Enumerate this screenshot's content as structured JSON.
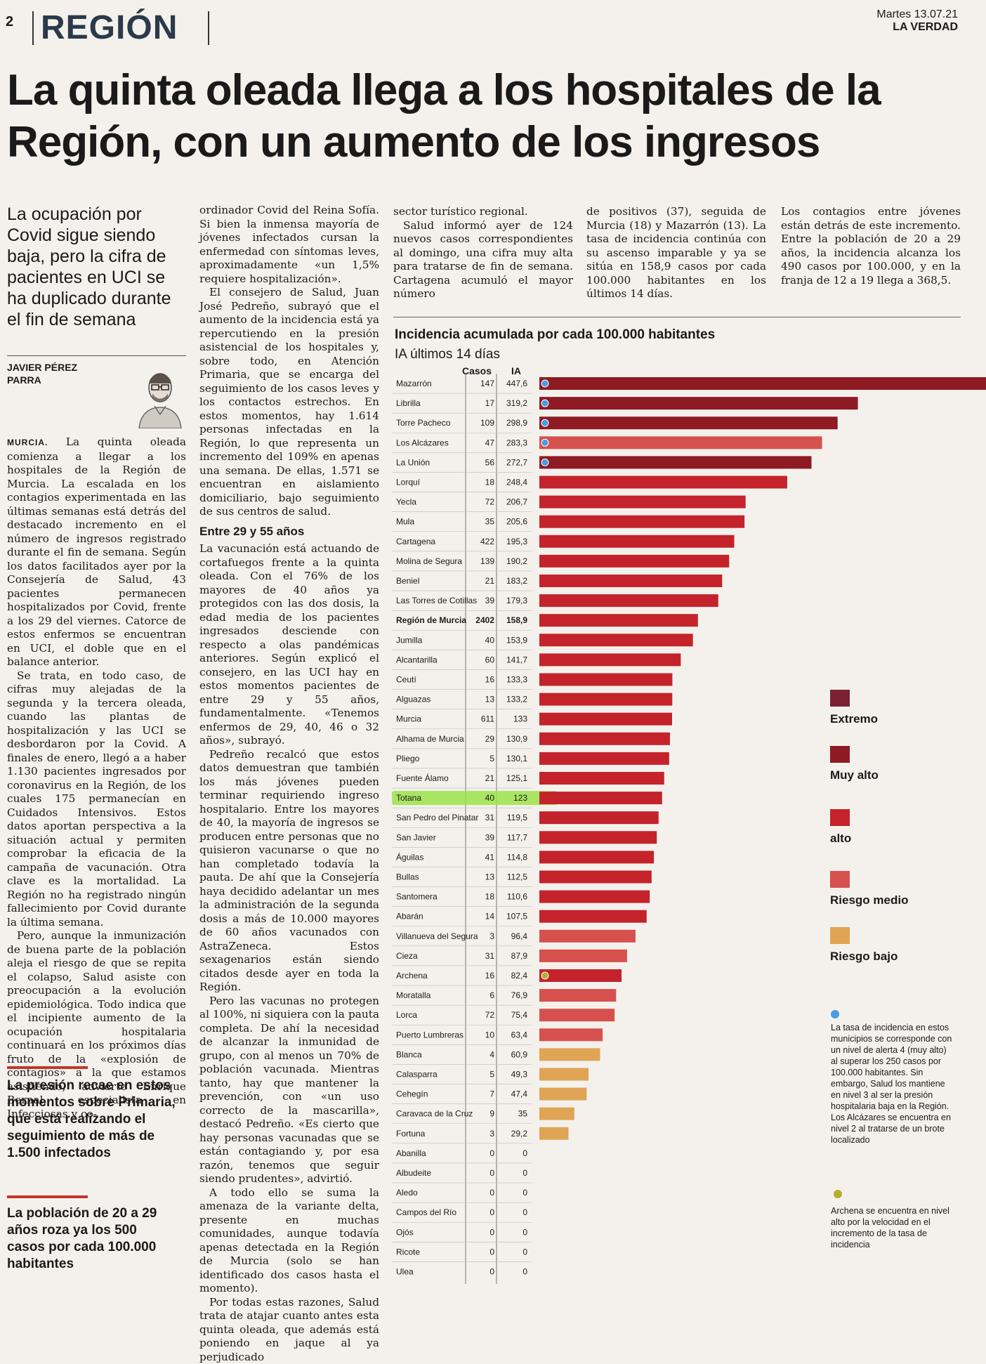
{
  "header": {
    "page_number": "2",
    "section": "REGIÓN",
    "date": "Martes 13.07.21",
    "newspaper": "LA VERDAD"
  },
  "headline": "La quinta oleada llega a los hospitales de la Región, con un aumento de los ingresos",
  "subhead": "La ocupación por Covid sigue siendo baja, pero la cifra de pacientes en UCI se ha duplicado durante el fin de semana",
  "author": [
    "JAVIER PÉREZ",
    "PARRA"
  ],
  "article": {
    "city": "MURCIA.",
    "col1": [
      "La quinta oleada comienza a llegar a los hospitales de la Región de Murcia. La escalada en los contagios experimentada en las últimas semanas está detrás del destacado incremento en el número de ingresos registrado durante el fin de semana. Según los datos facilitados ayer por la Consejería de Salud, 43 pacientes permanecen hospitalizados por Covid, frente a los 29 del viernes. Catorce de estos enfermos se encuentran en UCI, el doble que en el balance anterior.",
      "Se trata, en todo caso, de cifras muy alejadas de la segunda y la tercera oleada, cuando las plantas de hospitalización y las UCI se desbordaron por la Covid. A finales de enero, llegó a a haber 1.130 pacientes ingresados por coronavirus en la Región, de los cuales 175 permanecían en Cuidados Intensivos. Estos datos aportan perspectiva a la situación actual y permiten comprobar la eficacia de la campaña de vacunación. Otra clave es la mortalidad. La Región no ha registrado ningún fallecimiento por Covid durante la última semana.",
      "Pero, aunque la inmunización de buena parte de la población aleja el riesgo de que se repita el colapso, Salud asiste con preocupación a la evolución epidemiológica. Todo indica que el incipiente aumento de la ocupación hospitalaria continuará en los próximos días fruto de la «explosión de contagios» a la que estamos asistiendo, advierte Enrique Bernal, especialista en Infecciosas y co-"
    ],
    "col2a": [
      "ordinador Covid del Reina Sofía. Si bien la inmensa mayoría de jóvenes infectados cursan la enfermedad con síntomas leves, aproximadamente «un 1,5% requiere hospitalización».",
      "El consejero de Salud, Juan José Pedreño, subrayó que el aumento de la incidencia está ya repercutiendo en la presión asistencial de los hospitales y, sobre todo, en Atención Primaria, que se encarga del seguimiento de los casos leves y los contactos estrechos. En estos momentos, hay 1.614 personas infectadas en la Región, lo que representa un incremento del 109% en apenas una semana. De ellas, 1.571 se encuentran en aislamiento domiciliario, bajo seguimiento de sus centros de salud."
    ],
    "subtitle": "Entre 29 y 55 años",
    "col2b": [
      "La vacunación está actuando de cortafuegos frente a la quinta oleada. Con el 76% de los mayores de 40 años ya protegidos con las dos dosis, la edad media de los pacientes ingresados desciende con respecto a olas pandémicas anteriores. Según explicó el consejero, en las UCI hay en estos momentos pacientes de entre 29 y 55 años, fundamentalmente. «Tenemos enfermos de 29, 40, 46 o 32 años», subrayó.",
      "Pedreño recalcó que estos datos demuestran que también los más jóvenes pueden terminar requiriendo ingreso hospitalario. Entre los mayores de 40, la mayoría de ingresos se producen entre personas que no quisieron vacunarse o que no han completado todavía la pauta. De ahí que la Consejería haya decidido adelantar un mes la administración de la segunda dosis a más de 10.000 mayores de 60 años vacunados con AstraZeneca. Estos sexagenarios están siendo citados desde ayer en toda la Región.",
      "Pero las vacunas no protegen al 100%, ni siquiera con la pauta completa. De ahí la necesidad de alcanzar la inmunidad de grupo, con al menos un 70% de población vacunada. Mientras tanto, hay que mantener la prevención, con «un uso correcto de la mascarilla», destacó Pedreño. «Es cierto que hay personas vacunadas que se están contagiando y, por esa razón, tenemos que seguir siendo prudentes», advirtió.",
      "A todo ello se suma la amenaza de la variante delta, presente en muchas comunidades, aunque todavía apenas detectada en la Región de Murcia (solo se han identificado dos casos hasta el momento).",
      "Por todas estas razones, Salud trata de atajar cuanto antes esta quinta oleada, que además está poniendo en jaque al ya perjudicado"
    ],
    "col3": [
      "sector turístico regional.",
      "Salud informó ayer de 124 nuevos casos correspondientes al domingo, una cifra muy alta para tratarse de fin de semana. Cartagena acumuló el mayor número"
    ],
    "col4": [
      "de positivos (37), seguida de Murcia (18) y Mazarrón (13). La tasa de incidencia continúa con su ascenso imparable y ya se sitúa en 158,9 casos por cada 100.000 habitantes en los últimos 14 días."
    ],
    "col5": [
      "Los contagios entre jóvenes están detrás de este incremento. Entre la población de 20 a 29 años, la incidencia alcanza los 490 casos por 100.000, y en la franja de 12 a 19 llega a 368,5."
    ]
  },
  "pullquotes": [
    "La presión recae en estos momentos sobre Primaria, que está realizando el seguimiento de más de 1.500 infectados",
    "La población de 20 a 29 años roza ya los 500 casos por cada 100.000 habitantes"
  ],
  "chart_data": {
    "type": "bar",
    "orientation": "horizontal",
    "title": "Incidencia acumulada por cada 100.000 habitantes",
    "subtitle": "IA últimos 14 días",
    "columns": [
      "Casos",
      "IA"
    ],
    "rows": [
      {
        "name": "Mazarrón",
        "casos": "147",
        "ia": "447,6",
        "value": 447.6,
        "level": "muy_alto",
        "marker": "blue"
      },
      {
        "name": "Librilla",
        "casos": "17",
        "ia": "319,2",
        "value": 319.2,
        "level": "muy_alto",
        "marker": "blue"
      },
      {
        "name": "Torre Pacheco",
        "casos": "109",
        "ia": "298,9",
        "value": 298.9,
        "level": "muy_alto",
        "marker": "blue"
      },
      {
        "name": "Los Alcázares",
        "casos": "47",
        "ia": "283,3",
        "value": 283.3,
        "level": "riesgo_medio",
        "marker": "blue"
      },
      {
        "name": "La Unión",
        "casos": "56",
        "ia": "272,7",
        "value": 272.7,
        "level": "muy_alto",
        "marker": "blue"
      },
      {
        "name": "Lorquí",
        "casos": "18",
        "ia": "248,4",
        "value": 248.4,
        "level": "alto",
        "marker": ""
      },
      {
        "name": "Yecla",
        "casos": "72",
        "ia": "206,7",
        "value": 206.7,
        "level": "alto",
        "marker": ""
      },
      {
        "name": "Mula",
        "casos": "35",
        "ia": "205,6",
        "value": 205.6,
        "level": "alto",
        "marker": ""
      },
      {
        "name": "Cartagena",
        "casos": "422",
        "ia": "195,3",
        "value": 195.3,
        "level": "alto",
        "marker": ""
      },
      {
        "name": "Molina de Segura",
        "casos": "139",
        "ia": "190,2",
        "value": 190.2,
        "level": "alto",
        "marker": ""
      },
      {
        "name": "Beniel",
        "casos": "21",
        "ia": "183,2",
        "value": 183.2,
        "level": "alto",
        "marker": ""
      },
      {
        "name": "Las Torres de Cotillas",
        "casos": "39",
        "ia": "179,3",
        "value": 179.3,
        "level": "alto",
        "marker": ""
      },
      {
        "name": "Región de Murcia",
        "casos": "2402",
        "ia": "158,9",
        "value": 158.9,
        "level": "alto",
        "marker": "",
        "bold": true
      },
      {
        "name": "Jumilla",
        "casos": "40",
        "ia": "153,9",
        "value": 153.9,
        "level": "alto",
        "marker": ""
      },
      {
        "name": "Alcantarilla",
        "casos": "60",
        "ia": "141,7",
        "value": 141.7,
        "level": "alto",
        "marker": ""
      },
      {
        "name": "Ceutí",
        "casos": "16",
        "ia": "133,3",
        "value": 133.3,
        "level": "alto",
        "marker": ""
      },
      {
        "name": "Alguazas",
        "casos": "13",
        "ia": "133,2",
        "value": 133.2,
        "level": "alto",
        "marker": ""
      },
      {
        "name": "Murcia",
        "casos": "611",
        "ia": "133",
        "value": 133,
        "level": "alto",
        "marker": ""
      },
      {
        "name": "Alhama de Murcia",
        "casos": "29",
        "ia": "130,9",
        "value": 130.9,
        "level": "alto",
        "marker": ""
      },
      {
        "name": "Pliego",
        "casos": "5",
        "ia": "130,1",
        "value": 130.1,
        "level": "alto",
        "marker": ""
      },
      {
        "name": "Fuente Álamo",
        "casos": "21",
        "ia": "125,1",
        "value": 125.1,
        "level": "alto",
        "marker": ""
      },
      {
        "name": "Totana",
        "casos": "40",
        "ia": "123",
        "value": 123,
        "level": "alto",
        "marker": "",
        "highlight": true
      },
      {
        "name": "San Pedro del Pinatar",
        "casos": "31",
        "ia": "119,5",
        "value": 119.5,
        "level": "alto",
        "marker": ""
      },
      {
        "name": "San Javier",
        "casos": "39",
        "ia": "117,7",
        "value": 117.7,
        "level": "alto",
        "marker": ""
      },
      {
        "name": "Águilas",
        "casos": "41",
        "ia": "114,8",
        "value": 114.8,
        "level": "alto",
        "marker": ""
      },
      {
        "name": "Bullas",
        "casos": "13",
        "ia": "112,5",
        "value": 112.5,
        "level": "alto",
        "marker": ""
      },
      {
        "name": "Santomera",
        "casos": "18",
        "ia": "110,6",
        "value": 110.6,
        "level": "alto",
        "marker": ""
      },
      {
        "name": "Abarán",
        "casos": "14",
        "ia": "107,5",
        "value": 107.5,
        "level": "alto",
        "marker": ""
      },
      {
        "name": "Villanueva del Segura",
        "casos": "3",
        "ia": "96,4",
        "value": 96.4,
        "level": "riesgo_medio",
        "marker": ""
      },
      {
        "name": "Cieza",
        "casos": "31",
        "ia": "87,9",
        "value": 87.9,
        "level": "riesgo_medio",
        "marker": ""
      },
      {
        "name": "Archena",
        "casos": "16",
        "ia": "82,4",
        "value": 82.4,
        "level": "alto",
        "marker": "yellow"
      },
      {
        "name": "Moratalla",
        "casos": "6",
        "ia": "76,9",
        "value": 76.9,
        "level": "riesgo_medio",
        "marker": ""
      },
      {
        "name": "Lorca",
        "casos": "72",
        "ia": "75,4",
        "value": 75.4,
        "level": "riesgo_medio",
        "marker": ""
      },
      {
        "name": "Puerto Lumbreras",
        "casos": "10",
        "ia": "63,4",
        "value": 63.4,
        "level": "riesgo_medio",
        "marker": ""
      },
      {
        "name": "Blanca",
        "casos": "4",
        "ia": "60,9",
        "value": 60.9,
        "level": "riesgo_bajo",
        "marker": ""
      },
      {
        "name": "Calasparra",
        "casos": "5",
        "ia": "49,3",
        "value": 49.3,
        "level": "riesgo_bajo",
        "marker": ""
      },
      {
        "name": "Cehegín",
        "casos": "7",
        "ia": "47,4",
        "value": 47.4,
        "level": "riesgo_bajo",
        "marker": ""
      },
      {
        "name": "Caravaca de la Cruz",
        "casos": "9",
        "ia": "35",
        "value": 35,
        "level": "riesgo_bajo",
        "marker": ""
      },
      {
        "name": "Fortuna",
        "casos": "3",
        "ia": "29,2",
        "value": 29.2,
        "level": "riesgo_bajo",
        "marker": ""
      },
      {
        "name": "Abanilla",
        "casos": "0",
        "ia": "0",
        "value": 0,
        "level": "riesgo_bajo",
        "marker": ""
      },
      {
        "name": "Albudeite",
        "casos": "0",
        "ia": "0",
        "value": 0,
        "level": "riesgo_bajo",
        "marker": ""
      },
      {
        "name": "Aledo",
        "casos": "0",
        "ia": "0",
        "value": 0,
        "level": "riesgo_bajo",
        "marker": ""
      },
      {
        "name": "Campos del Río",
        "casos": "0",
        "ia": "0",
        "value": 0,
        "level": "riesgo_bajo",
        "marker": ""
      },
      {
        "name": "Ojós",
        "casos": "0",
        "ia": "0",
        "value": 0,
        "level": "riesgo_bajo",
        "marker": ""
      },
      {
        "name": "Ricote",
        "casos": "0",
        "ia": "0",
        "value": 0,
        "level": "riesgo_bajo",
        "marker": ""
      },
      {
        "name": "Ulea",
        "casos": "0",
        "ia": "0",
        "value": 0,
        "level": "riesgo_bajo",
        "marker": ""
      }
    ],
    "legend": [
      {
        "key": "extremo",
        "label": "Extremo",
        "color": "#7a2233"
      },
      {
        "key": "muy_alto",
        "label": "Muy alto",
        "color": "#8e1a24"
      },
      {
        "key": "alto",
        "label": "alto",
        "color": "#c4232b"
      },
      {
        "key": "riesgo_medio",
        "label": "Riesgo medio",
        "color": "#d6514e"
      },
      {
        "key": "riesgo_bajo",
        "label": "Riesgo bajo",
        "color": "#e0a455"
      }
    ],
    "highlight_color": "#9be34a",
    "marker_colors": {
      "blue": "#4a9be0",
      "yellow": "#b4ae2a"
    },
    "notes": [
      {
        "marker": "blue",
        "text": "La tasa de incidencia en estos municipios se corresponde con un nivel de alerta 4 (muy alto) al superar los 250 casos por 100.000 habitantes. Sin embargo, Salud los mantiene en nivel 3 al ser la presión hospitalaria baja en la Región. Los Alcázares se encuentra en nivel 2 al tratarse de un brote localizado"
      },
      {
        "marker": "yellow",
        "text": "Archena se encuentra en nivel alto por la velocidad en el incremento de la tasa de incidencia"
      }
    ]
  }
}
